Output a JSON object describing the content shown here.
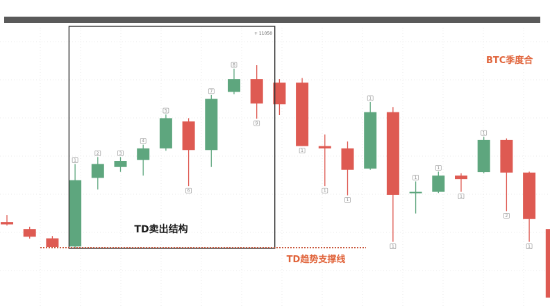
{
  "colors": {
    "up": "#5ea67e",
    "down": "#de5a52",
    "support": "#c8553a",
    "box": "#333333",
    "grid": "#e9e9e9"
  },
  "annotations": {
    "structure": "TD卖出结构",
    "support": "TD趋势支撑线",
    "title": "BTC季度合",
    "price_note": "+ 11050"
  },
  "chart_data": {
    "type": "candlestick",
    "ylim": [
      0,
      100
    ],
    "support_level": 21.5,
    "box": {
      "from_candle": 2,
      "to_candle": 10
    },
    "candles": [
      {
        "open": 32.5,
        "close": 31.5,
        "high": 35.5,
        "low": 31,
        "count": null
      },
      {
        "open": 29.5,
        "close": 26.2,
        "high": 30.5,
        "low": 25.4,
        "count": null
      },
      {
        "open": 25.5,
        "close": 21.8,
        "high": 26.5,
        "low": 21.3,
        "count": null
      },
      {
        "open": 22,
        "close": 50.5,
        "high": 57.5,
        "low": 21.5,
        "count": "1"
      },
      {
        "open": 51.5,
        "close": 57.5,
        "high": 60.5,
        "low": 46.5,
        "count": "2"
      },
      {
        "open": 56.2,
        "close": 58.8,
        "high": 60.5,
        "low": 54.1,
        "count": "3"
      },
      {
        "open": 59.2,
        "close": 64.2,
        "high": 65.8,
        "low": 52.5,
        "count": "4"
      },
      {
        "open": 64.2,
        "close": 77.2,
        "high": 78.8,
        "low": 63.2,
        "count": "5"
      },
      {
        "open": 75.8,
        "close": 63.5,
        "high": 77.2,
        "low": 48.0,
        "count": "6"
      },
      {
        "open": 63.5,
        "close": 85.5,
        "high": 87.2,
        "low": 56.2,
        "count": "7"
      },
      {
        "open": 88.5,
        "close": 94.0,
        "high": 98.5,
        "low": 87.5,
        "count": "8"
      },
      {
        "open": 94.0,
        "close": 83.5,
        "high": 100.0,
        "low": 77.0,
        "count": "9"
      },
      {
        "open": 92.5,
        "close": 83.2,
        "high": 94.0,
        "low": 78.5,
        "count": null
      },
      {
        "open": 92.5,
        "close": 65.2,
        "high": 94.5,
        "low": 65.2,
        "count": "1"
      },
      {
        "open": 65.2,
        "close": 64.2,
        "high": 70.2,
        "low": 48.0,
        "count": "1"
      },
      {
        "open": 64.2,
        "close": 55.0,
        "high": 67.2,
        "low": 44.0,
        "count": "1"
      },
      {
        "open": 55.5,
        "close": 79.8,
        "high": 84.2,
        "low": 55.0,
        "count": "1"
      },
      {
        "open": 79.8,
        "close": 44.2,
        "high": 82.0,
        "low": 24.0,
        "count": "1"
      },
      {
        "open": 45.0,
        "close": 45.5,
        "high": 50.0,
        "low": 36.2,
        "count": "1"
      },
      {
        "open": 45.5,
        "close": 52.5,
        "high": 54.2,
        "low": 45.0,
        "count": "1"
      },
      {
        "open": 52.5,
        "close": 51.0,
        "high": 53.5,
        "low": 45.5,
        "count": "1"
      },
      {
        "open": 54.0,
        "close": 67.8,
        "high": 69.2,
        "low": 53.5,
        "count": "1"
      },
      {
        "open": 67.8,
        "close": 53.8,
        "high": 68.5,
        "low": 37.2,
        "count": "2"
      },
      {
        "open": 53.8,
        "close": 33.8,
        "high": 54.2,
        "low": 24.0,
        "count": "1"
      },
      {
        "open": 29.5,
        "close": 0.0,
        "high": 29.5,
        "low": 0.0,
        "count": null
      }
    ]
  }
}
